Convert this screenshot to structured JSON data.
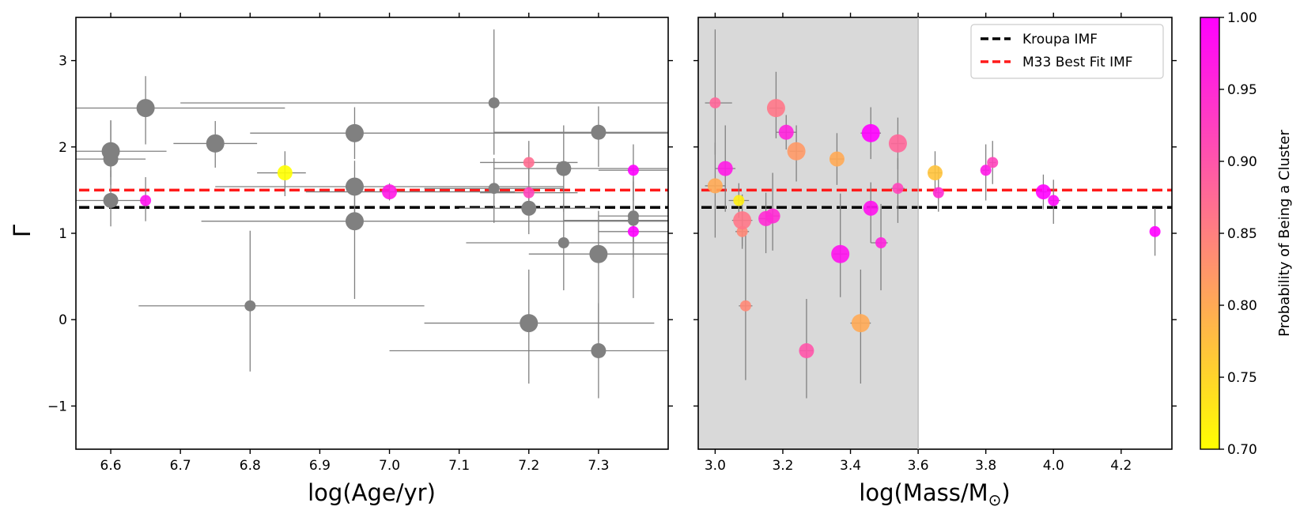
{
  "chart_data": [
    {
      "type": "scatter",
      "panel": "left",
      "xlabel": "log(Age/yr)",
      "ylabel": "Γ",
      "xlim": [
        6.55,
        7.4
      ],
      "ylim": [
        -1.5,
        3.5
      ],
      "xticks": [
        6.6,
        6.7,
        6.8,
        6.9,
        7.0,
        7.1,
        7.2,
        7.3
      ],
      "xtick_labels": [
        "6.6",
        "6.7",
        "6.8",
        "6.9",
        "7.0",
        "7.1",
        "7.2",
        "7.3"
      ],
      "yticks": [
        -1,
        0,
        1,
        2,
        3
      ],
      "ytick_labels": [
        "−1",
        "0",
        "1",
        "2",
        "3"
      ],
      "reference_lines": [
        {
          "name": "Kroupa IMF",
          "y": 1.3,
          "color": "#000000",
          "style": "dashed"
        },
        {
          "name": "M33 Best Fit IMF",
          "y": 1.5,
          "color": "#ff1a1a",
          "style": "dashed"
        }
      ],
      "points": [
        {
          "x": 6.6,
          "y": 1.95,
          "xerr": [
            0.08,
            0.08
          ],
          "yerr": [
            0.3,
            0.35
          ],
          "size": "large",
          "prob": null
        },
        {
          "x": 6.6,
          "y": 1.86,
          "xerr": [
            0.05,
            0.05
          ],
          "yerr": [
            0.3,
            0.45
          ],
          "size": "medium",
          "prob": null
        },
        {
          "x": 6.6,
          "y": 1.38,
          "xerr": [
            0.05,
            0.05
          ],
          "yerr": [
            0.3,
            0.35
          ],
          "size": "medium",
          "prob": null
        },
        {
          "x": 6.65,
          "y": 2.45,
          "xerr": [
            0.1,
            0.2
          ],
          "yerr": [
            0.42,
            0.37
          ],
          "size": "large",
          "prob": null
        },
        {
          "x": 6.65,
          "y": 1.38,
          "xerr": [
            0.0,
            0.0
          ],
          "yerr": [
            0.24,
            0.27
          ],
          "size": "small",
          "prob": 0.98
        },
        {
          "x": 6.75,
          "y": 2.04,
          "xerr": [
            0.06,
            0.06
          ],
          "yerr": [
            0.28,
            0.26
          ],
          "size": "large",
          "prob": null
        },
        {
          "x": 6.85,
          "y": 1.7,
          "xerr": [
            0.04,
            0.03
          ],
          "yerr": [
            0.27,
            0.25
          ],
          "size": "medium",
          "prob": 0.7
        },
        {
          "x": 6.8,
          "y": 0.16,
          "xerr": [
            0.16,
            0.25
          ],
          "yerr": [
            0.76,
            0.87
          ],
          "size": "small",
          "prob": null
        },
        {
          "x": 6.95,
          "y": 2.16,
          "xerr": [
            0.15,
            0.45
          ],
          "yerr": [
            0.3,
            0.3
          ],
          "size": "large",
          "prob": null
        },
        {
          "x": 6.95,
          "y": 1.54,
          "xerr": [
            0.2,
            0.3
          ],
          "yerr": [
            0.3,
            0.3
          ],
          "size": "large",
          "prob": null
        },
        {
          "x": 6.95,
          "y": 1.14,
          "xerr": [
            0.22,
            0.45
          ],
          "yerr": [
            0.9,
            0.3
          ],
          "size": "large",
          "prob": null
        },
        {
          "x": 7.0,
          "y": 1.48,
          "xerr": [
            0.12,
            0.18
          ],
          "yerr": [
            0.1,
            0.1
          ],
          "size": "medium",
          "prob": 0.97
        },
        {
          "x": 7.15,
          "y": 2.51,
          "xerr": [
            0.45,
            0.25
          ],
          "yerr": [
            0.6,
            0.85
          ],
          "size": "small",
          "prob": null
        },
        {
          "x": 7.15,
          "y": 1.52,
          "xerr": [
            0.1,
            0.1
          ],
          "yerr": [
            0.4,
            0.35
          ],
          "size": "small",
          "prob": null
        },
        {
          "x": 7.2,
          "y": 1.82,
          "xerr": [
            0.07,
            0.07
          ],
          "yerr": [
            0.25,
            0.25
          ],
          "size": "small",
          "prob": 0.87
        },
        {
          "x": 7.2,
          "y": 1.47,
          "xerr": [
            0.07,
            0.07
          ],
          "yerr": [
            0.22,
            0.3
          ],
          "size": "small",
          "prob": 0.92
        },
        {
          "x": 7.2,
          "y": 1.29,
          "xerr": [
            0.1,
            0.1
          ],
          "yerr": [
            0.3,
            0.25
          ],
          "size": "medium",
          "prob": null
        },
        {
          "x": 7.2,
          "y": -0.04,
          "xerr": [
            0.15,
            0.18
          ],
          "yerr": [
            0.7,
            0.62
          ],
          "size": "large",
          "prob": null
        },
        {
          "x": 7.25,
          "y": 1.75,
          "xerr": [
            0.1,
            0.15
          ],
          "yerr": [
            0.5,
            0.5
          ],
          "size": "medium",
          "prob": null
        },
        {
          "x": 7.25,
          "y": 0.89,
          "xerr": [
            0.14,
            0.16
          ],
          "yerr": [
            0.55,
            0.45
          ],
          "size": "small",
          "prob": null
        },
        {
          "x": 7.3,
          "y": 2.17,
          "xerr": [
            0.15,
            0.1
          ],
          "yerr": [
            0.4,
            0.3
          ],
          "size": "medium",
          "prob": null
        },
        {
          "x": 7.3,
          "y": 0.76,
          "xerr": [
            0.1,
            0.1
          ],
          "yerr": [
            1.0,
            0.5
          ],
          "size": "large",
          "prob": null
        },
        {
          "x": 7.3,
          "y": -0.36,
          "xerr": [
            0.3,
            0.1
          ],
          "yerr": [
            0.55,
            0.55
          ],
          "size": "medium",
          "prob": null
        },
        {
          "x": 7.35,
          "y": 1.73,
          "xerr": [
            0.05,
            0.05
          ],
          "yerr": [
            0.35,
            0.3
          ],
          "size": "small",
          "prob": 1.0
        },
        {
          "x": 7.35,
          "y": 1.2,
          "xerr": [
            0.05,
            0.05
          ],
          "yerr": [
            0.3,
            0.4
          ],
          "size": "small",
          "prob": null
        },
        {
          "x": 7.35,
          "y": 1.15,
          "xerr": [
            0.1,
            0.05
          ],
          "yerr": [
            0.9,
            0.5
          ],
          "size": "small",
          "prob": null
        },
        {
          "x": 7.35,
          "y": 1.02,
          "xerr": [
            0.05,
            0.05
          ],
          "yerr": [
            0.3,
            0.3
          ],
          "size": "small",
          "prob": 1.0
        }
      ]
    },
    {
      "type": "scatter",
      "panel": "right",
      "xlabel": "log(Mass/M",
      "xlabel_symbol": "⊙",
      "xlabel_close": ")",
      "xlim": [
        2.95,
        4.35
      ],
      "ylim": [
        -1.5,
        3.5
      ],
      "xticks": [
        3.0,
        3.2,
        3.4,
        3.6,
        3.8,
        4.0,
        4.2
      ],
      "xtick_labels": [
        "3.0",
        "3.2",
        "3.4",
        "3.6",
        "3.8",
        "4.0",
        "4.2"
      ],
      "shaded_region": {
        "x_from": 2.95,
        "x_to": 3.6,
        "color": "#d9d9d9"
      },
      "legend": {
        "position": "top-right",
        "entries": [
          {
            "label": "Kroupa IMF",
            "color": "#000000"
          },
          {
            "label": "M33 Best Fit IMF",
            "color": "#ff1a1a"
          }
        ]
      },
      "reference_lines": [
        {
          "name": "Kroupa IMF",
          "y": 1.3,
          "color": "#000000",
          "style": "dashed"
        },
        {
          "name": "M33 Best Fit IMF",
          "y": 1.5,
          "color": "#ff1a1a",
          "style": "dashed"
        }
      ],
      "points": [
        {
          "x": 3.0,
          "y": 2.51,
          "xerr": [
            0.03,
            0.05
          ],
          "yerr": [
            0.6,
            0.85
          ],
          "size": "small",
          "prob": 0.88
        },
        {
          "x": 3.0,
          "y": 1.55,
          "xerr": [
            0.03,
            0.03
          ],
          "yerr": [
            0.6,
            0.5
          ],
          "size": "medium",
          "prob": 0.8
        },
        {
          "x": 3.03,
          "y": 1.75,
          "xerr": [
            0.03,
            0.03
          ],
          "yerr": [
            0.5,
            0.5
          ],
          "size": "medium",
          "prob": 0.97
        },
        {
          "x": 3.07,
          "y": 1.38,
          "xerr": [
            0.03,
            0.03
          ],
          "yerr": [
            0.2,
            0.2
          ],
          "size": "small",
          "prob": 0.72
        },
        {
          "x": 3.08,
          "y": 1.02,
          "xerr": [
            0.02,
            0.02
          ],
          "yerr": [
            0.2,
            0.2
          ],
          "size": "small",
          "prob": 0.84
        },
        {
          "x": 3.08,
          "y": 1.15,
          "xerr": [
            0.03,
            0.03
          ],
          "yerr": [
            0.3,
            0.3
          ],
          "size": "large",
          "prob": 0.86
        },
        {
          "x": 3.09,
          "y": 0.16,
          "xerr": [
            0.02,
            0.02
          ],
          "yerr": [
            0.86,
            0.85
          ],
          "size": "small",
          "prob": 0.84
        },
        {
          "x": 3.15,
          "y": 1.17,
          "xerr": [
            0.02,
            0.02
          ],
          "yerr": [
            0.4,
            0.3
          ],
          "size": "medium",
          "prob": 0.95
        },
        {
          "x": 3.17,
          "y": 1.2,
          "xerr": [
            0.02,
            0.02
          ],
          "yerr": [
            0.4,
            0.5
          ],
          "size": "medium",
          "prob": 0.95
        },
        {
          "x": 3.18,
          "y": 2.45,
          "xerr": [
            0.02,
            0.02
          ],
          "yerr": [
            0.35,
            0.42
          ],
          "size": "large",
          "prob": 0.86
        },
        {
          "x": 3.21,
          "y": 2.17,
          "xerr": [
            0.03,
            0.03
          ],
          "yerr": [
            0.2,
            0.2
          ],
          "size": "medium",
          "prob": 0.96
        },
        {
          "x": 3.24,
          "y": 1.95,
          "xerr": [
            0.02,
            0.02
          ],
          "yerr": [
            0.35,
            0.3
          ],
          "size": "large",
          "prob": 0.82
        },
        {
          "x": 3.27,
          "y": -0.36,
          "xerr": [
            0.02,
            0.02
          ],
          "yerr": [
            0.55,
            0.6
          ],
          "size": "medium",
          "prob": 0.9
        },
        {
          "x": 3.36,
          "y": 1.86,
          "xerr": [
            0.02,
            0.02
          ],
          "yerr": [
            0.3,
            0.3
          ],
          "size": "medium",
          "prob": 0.8
        },
        {
          "x": 3.37,
          "y": 0.76,
          "xerr": [
            0.02,
            0.02
          ],
          "yerr": [
            0.5,
            0.7
          ],
          "size": "large",
          "prob": 0.98
        },
        {
          "x": 3.43,
          "y": -0.04,
          "xerr": [
            0.03,
            0.03
          ],
          "yerr": [
            0.7,
            0.62
          ],
          "size": "large",
          "prob": 0.8
        },
        {
          "x": 3.46,
          "y": 2.16,
          "xerr": [
            0.03,
            0.03
          ],
          "yerr": [
            0.3,
            0.3
          ],
          "size": "large",
          "prob": 1.0
        },
        {
          "x": 3.46,
          "y": 1.29,
          "xerr": [
            0.02,
            0.02
          ],
          "yerr": [
            0.4,
            0.3
          ],
          "size": "medium",
          "prob": 0.98
        },
        {
          "x": 3.49,
          "y": 0.89,
          "xerr": [
            0.03,
            0.02
          ],
          "yerr": [
            0.55,
            0.45
          ],
          "size": "small",
          "prob": 0.96
        },
        {
          "x": 3.54,
          "y": 2.04,
          "xerr": [
            0.02,
            0.02
          ],
          "yerr": [
            0.3,
            0.3
          ],
          "size": "large",
          "prob": 0.88
        },
        {
          "x": 3.54,
          "y": 1.52,
          "xerr": [
            0.02,
            0.02
          ],
          "yerr": [
            0.4,
            0.35
          ],
          "size": "small",
          "prob": 0.92
        },
        {
          "x": 3.65,
          "y": 1.7,
          "xerr": [
            0.02,
            0.02
          ],
          "yerr": [
            0.27,
            0.25
          ],
          "size": "medium",
          "prob": 0.77
        },
        {
          "x": 3.66,
          "y": 1.47,
          "xerr": [
            0.01,
            0.01
          ],
          "yerr": [
            0.22,
            0.3
          ],
          "size": "small",
          "prob": 0.95
        },
        {
          "x": 3.8,
          "y": 1.73,
          "xerr": [
            0.01,
            0.01
          ],
          "yerr": [
            0.35,
            0.3
          ],
          "size": "small",
          "prob": 0.97
        },
        {
          "x": 3.82,
          "y": 1.82,
          "xerr": [
            0.01,
            0.01
          ],
          "yerr": [
            0.25,
            0.25
          ],
          "size": "small",
          "prob": 0.92
        },
        {
          "x": 3.97,
          "y": 1.48,
          "xerr": [
            0.01,
            0.01
          ],
          "yerr": [
            0.2,
            0.2
          ],
          "size": "medium",
          "prob": 1.0
        },
        {
          "x": 4.0,
          "y": 1.38,
          "xerr": [
            0.01,
            0.02
          ],
          "yerr": [
            0.27,
            0.24
          ],
          "size": "small",
          "prob": 0.99
        },
        {
          "x": 4.3,
          "y": 1.02,
          "xerr": [
            0.0,
            0.0
          ],
          "yerr": [
            0.28,
            0.27
          ],
          "size": "small",
          "prob": 1.0
        }
      ]
    },
    {
      "type": "colorbar",
      "label": "Probability of Being a Cluster",
      "range": [
        0.7,
        1.0
      ],
      "ticks": [
        0.7,
        0.75,
        0.8,
        0.85,
        0.9,
        0.95,
        1.0
      ],
      "tick_labels": [
        "0.70",
        "0.75",
        "0.80",
        "0.85",
        "0.90",
        "0.95",
        "1.00"
      ],
      "colormap": "spring_r",
      "color_low": "#ffff00",
      "color_high": "#ff00ff"
    }
  ],
  "colors": {
    "unclassified_point": "#808080",
    "error_bar": "#808080",
    "shaded_region": "#d9d9d9"
  }
}
